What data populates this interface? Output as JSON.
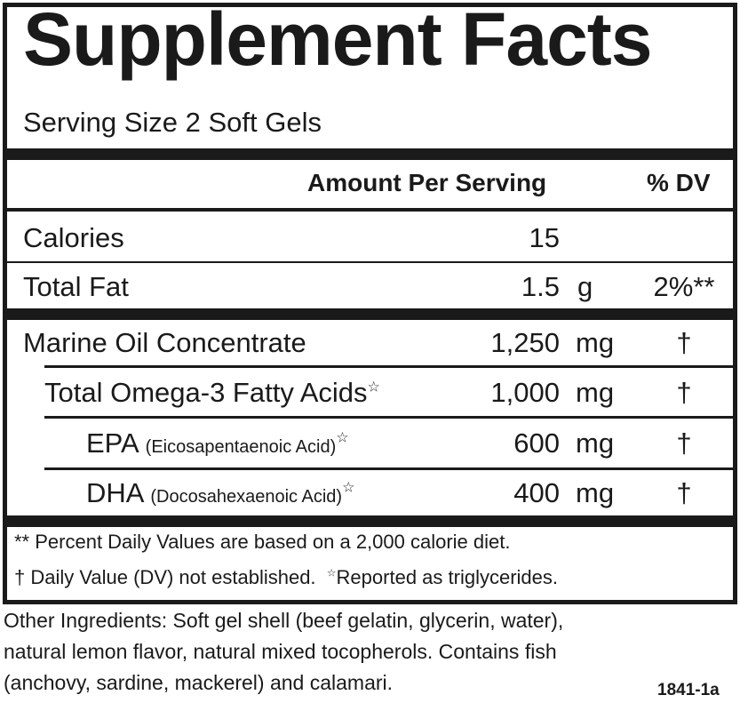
{
  "title": "Supplement Facts",
  "serving_size": "Serving Size 2 Soft Gels",
  "header": {
    "amount": "Amount Per Serving",
    "dv": "% DV"
  },
  "rows": [
    {
      "name": "Calories",
      "amount": "15",
      "unit": "",
      "dv": ""
    },
    {
      "name": "Total Fat",
      "amount": "1.5",
      "unit": "g",
      "dv": "2%**"
    },
    {
      "name": "Marine Oil Concentrate",
      "amount": "1,250",
      "unit": "mg",
      "dv": "†"
    },
    {
      "name": "Total Omega-3 Fatty Acids",
      "star": "☆",
      "amount": "1,000",
      "unit": "mg",
      "dv": "†"
    },
    {
      "name": "EPA",
      "sub": "(Eicosapentaenoic Acid)",
      "star": "☆",
      "amount": "600",
      "unit": "mg",
      "dv": "†"
    },
    {
      "name": "DHA",
      "sub": "(Docosahexaenoic Acid)",
      "star": "☆",
      "amount": "400",
      "unit": "mg",
      "dv": "†"
    }
  ],
  "footnotes": {
    "line1": "** Percent Daily Values are based on a 2,000 calorie diet.",
    "line2a": "† Daily Value (DV) not established.",
    "line2_star": "☆",
    "line2b": "Reported as triglycerides."
  },
  "other_ingredients": [
    "Other Ingredients: Soft gel shell (beef gelatin, glycerin, water),",
    "natural lemon flavor, natural mixed tocopherols. Contains fish",
    "(anchovy, sardine, mackerel) and calamari."
  ],
  "code": "1841-1a"
}
